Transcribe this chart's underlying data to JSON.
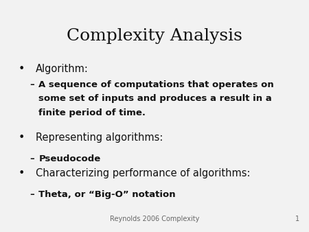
{
  "title": "Complexity Analysis",
  "title_fontsize": 18,
  "title_font": "serif",
  "background_color": "#f2f2f2",
  "text_color": "#111111",
  "footer_text": "Reynolds 2006 Complexity",
  "footer_page": "1",
  "bullet1": "Algorithm:",
  "bullet1_sub_line1": "A sequence of computations that operates on",
  "bullet1_sub_line2": "some set of inputs and produces a result in a",
  "bullet1_sub_line3": "finite period of time.",
  "bullet2": "Representing algorithms:",
  "bullet2_sub": "Pseudocode",
  "bullet3": "Characterizing performance of algorithms:",
  "bullet3_sub": "Theta, or “Big-O” notation",
  "bullet_fontsize": 10.5,
  "sub_fontsize": 9.5,
  "footer_fontsize": 7
}
